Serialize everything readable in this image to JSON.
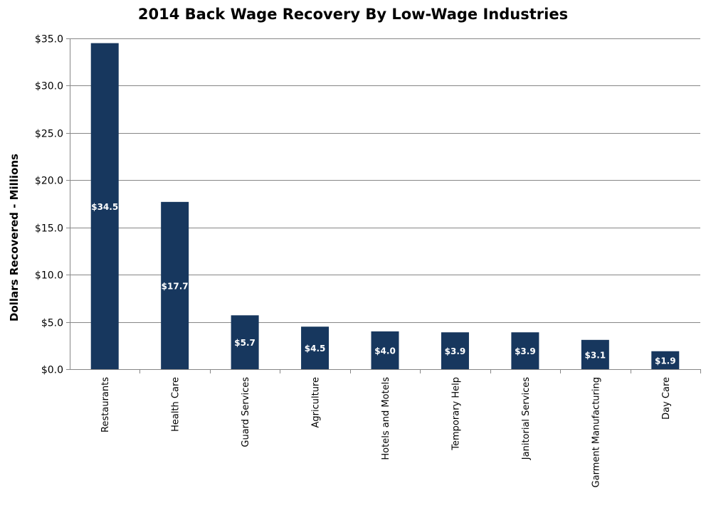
{
  "chart_data": {
    "type": "bar",
    "title": "2014 Back Wage Recovery By Low-Wage Industries",
    "xlabel": "",
    "ylabel": "Dollars Recovered - Millions",
    "ylim": [
      0,
      35
    ],
    "yticks": [
      0,
      5,
      10,
      15,
      20,
      25,
      30,
      35
    ],
    "ytick_labels": [
      "$0.0",
      "$5.0",
      "$10.0",
      "$15.0",
      "$20.0",
      "$25.0",
      "$30.0",
      "$35.0"
    ],
    "categories": [
      "Restaurants",
      "Health Care",
      "Guard Services",
      "Agriculture",
      "Hotels and Motels",
      "Temporary Help",
      "Janitorial Services",
      "Garment Manufacturing",
      "Day Care"
    ],
    "values": [
      34.5,
      17.7,
      5.7,
      4.5,
      4.0,
      3.9,
      3.9,
      3.1,
      1.9
    ],
    "data_labels": [
      "$34.5",
      "$17.7",
      "$5.7",
      "$4.5",
      "$4.0",
      "$3.9",
      "$3.9",
      "$3.1",
      "$1.9"
    ],
    "grid": true,
    "legend": "none",
    "colors": {
      "bar": "#17375e",
      "grid": "#868686",
      "axis": "#868686"
    }
  }
}
